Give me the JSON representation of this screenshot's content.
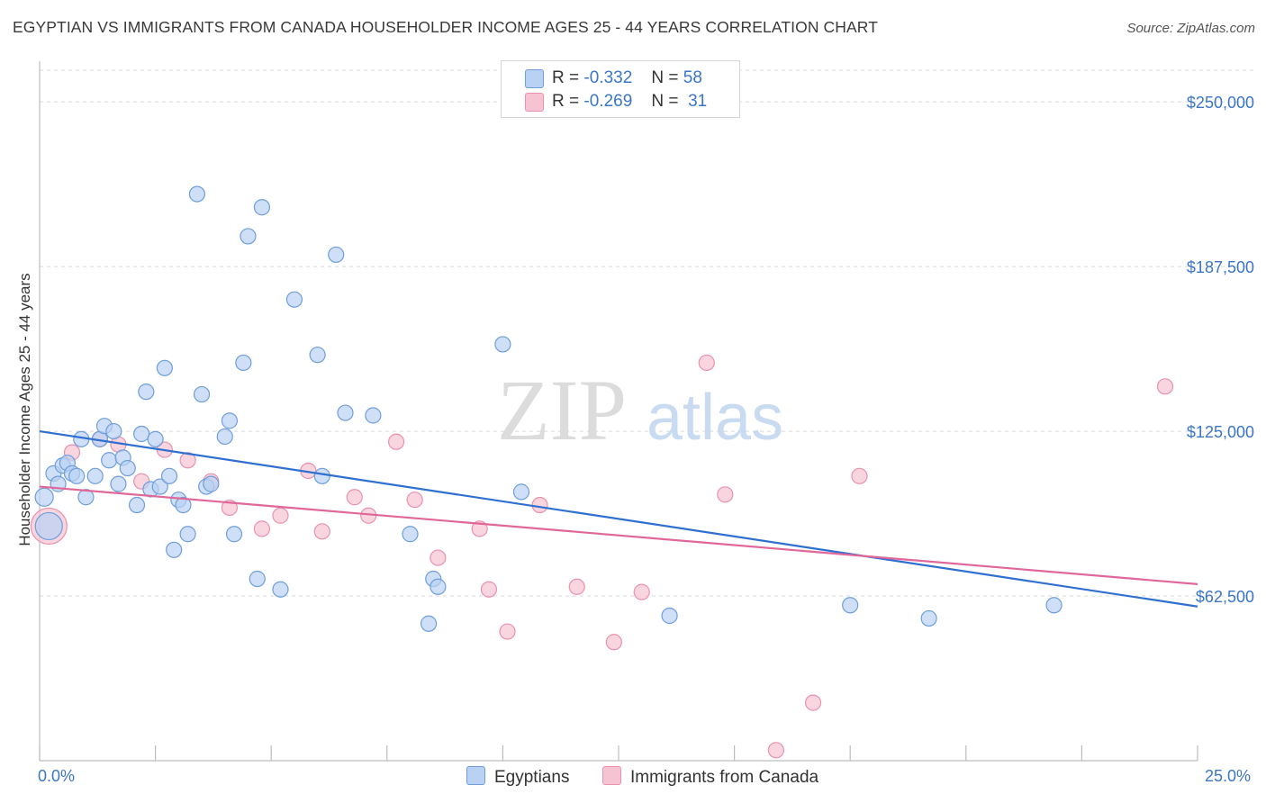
{
  "title": "EGYPTIAN VS IMMIGRANTS FROM CANADA HOUSEHOLDER INCOME AGES 25 - 44 YEARS CORRELATION CHART",
  "source": "Source: ZipAtlas.com",
  "watermark": {
    "zip": "ZIP",
    "atlas": "atlas"
  },
  "colors": {
    "blue_fill": "#b9d2f3",
    "blue_stroke": "#6f9edb",
    "blue_line": "#2e6fd0",
    "pink_fill": "#f6c3d2",
    "pink_stroke": "#e892ae",
    "pink_line": "#e0679a",
    "axis_text": "#3b76c4",
    "grid": "#d9d9d9"
  },
  "legend": {
    "rows": [
      {
        "r_label": "R =",
        "r_value": "-0.332",
        "n_label": "N =",
        "n_value": "58"
      },
      {
        "r_label": "R =",
        "r_value": "-0.269",
        "n_label": "N =",
        "n_value": "31"
      }
    ]
  },
  "bottom_legend": {
    "series1": "Egyptians",
    "series2": "Immigrants from Canada"
  },
  "chart_data": {
    "type": "scatter",
    "ylabel": "Householder Income Ages 25 - 44 years",
    "x_tick_labels": [
      "0.0%",
      "25.0%"
    ],
    "y_tick_labels": [
      "$250,000",
      "$187,500",
      "$125,000",
      "$62,500"
    ],
    "y_ticks": [
      250000,
      187500,
      125000,
      62500
    ],
    "xlim": [
      0,
      25
    ],
    "ylim": [
      0,
      262000
    ],
    "grid": true,
    "series": [
      {
        "name": "Egyptians",
        "color": "#6f9edb",
        "trend": {
          "x": [
            0,
            25
          ],
          "y": [
            125000,
            58500
          ]
        },
        "points": [
          [
            0.1,
            100000
          ],
          [
            0.2,
            89000
          ],
          [
            0.3,
            109000
          ],
          [
            0.4,
            105000
          ],
          [
            0.5,
            112000
          ],
          [
            0.6,
            113000
          ],
          [
            0.7,
            109000
          ],
          [
            0.8,
            108000
          ],
          [
            0.9,
            122000
          ],
          [
            1.0,
            100000
          ],
          [
            1.2,
            108000
          ],
          [
            1.3,
            122000
          ],
          [
            1.4,
            127000
          ],
          [
            1.5,
            114000
          ],
          [
            1.6,
            125000
          ],
          [
            1.7,
            105000
          ],
          [
            1.8,
            115000
          ],
          [
            1.9,
            111000
          ],
          [
            2.1,
            97000
          ],
          [
            2.2,
            124000
          ],
          [
            2.3,
            140000
          ],
          [
            2.4,
            103000
          ],
          [
            2.5,
            122000
          ],
          [
            2.6,
            104000
          ],
          [
            2.7,
            149000
          ],
          [
            2.8,
            108000
          ],
          [
            2.9,
            80000
          ],
          [
            3.0,
            99000
          ],
          [
            3.1,
            97000
          ],
          [
            3.2,
            86000
          ],
          [
            3.4,
            215000
          ],
          [
            3.5,
            139000
          ],
          [
            3.6,
            104000
          ],
          [
            3.7,
            105000
          ],
          [
            4.0,
            123000
          ],
          [
            4.1,
            129000
          ],
          [
            4.2,
            86000
          ],
          [
            4.4,
            151000
          ],
          [
            4.5,
            199000
          ],
          [
            4.7,
            69000
          ],
          [
            4.8,
            210000
          ],
          [
            5.2,
            65000
          ],
          [
            5.5,
            175000
          ],
          [
            6.0,
            154000
          ],
          [
            6.1,
            108000
          ],
          [
            6.4,
            192000
          ],
          [
            6.6,
            132000
          ],
          [
            7.2,
            131000
          ],
          [
            8.0,
            86000
          ],
          [
            8.4,
            52000
          ],
          [
            8.5,
            69000
          ],
          [
            8.6,
            66000
          ],
          [
            10.0,
            158000
          ],
          [
            10.4,
            102000
          ],
          [
            13.6,
            55000
          ],
          [
            17.5,
            59000
          ],
          [
            19.2,
            54000
          ],
          [
            21.9,
            59000
          ]
        ],
        "sizes": {
          "0": 20,
          "1": 30
        }
      },
      {
        "name": "Immigrants from Canada",
        "color": "#e892ae",
        "trend": {
          "x": [
            0,
            25
          ],
          "y": [
            104000,
            67000
          ]
        },
        "points": [
          [
            0.2,
            89000
          ],
          [
            0.7,
            117000
          ],
          [
            1.3,
            122000
          ],
          [
            1.7,
            120000
          ],
          [
            2.2,
            106000
          ],
          [
            2.7,
            118000
          ],
          [
            3.2,
            114000
          ],
          [
            3.7,
            106000
          ],
          [
            4.1,
            96000
          ],
          [
            4.8,
            88000
          ],
          [
            5.2,
            93000
          ],
          [
            5.8,
            110000
          ],
          [
            6.1,
            87000
          ],
          [
            6.8,
            100000
          ],
          [
            7.1,
            93000
          ],
          [
            7.7,
            121000
          ],
          [
            8.1,
            99000
          ],
          [
            8.6,
            77000
          ],
          [
            9.5,
            88000
          ],
          [
            9.7,
            65000
          ],
          [
            10.1,
            49000
          ],
          [
            10.8,
            97000
          ],
          [
            11.6,
            66000
          ],
          [
            12.4,
            45000
          ],
          [
            13.0,
            64000
          ],
          [
            14.4,
            151000
          ],
          [
            14.8,
            101000
          ],
          [
            15.9,
            4000
          ],
          [
            16.7,
            22000
          ],
          [
            17.7,
            108000
          ],
          [
            24.3,
            142000
          ]
        ],
        "sizes": {
          "0": 40
        }
      }
    ]
  }
}
